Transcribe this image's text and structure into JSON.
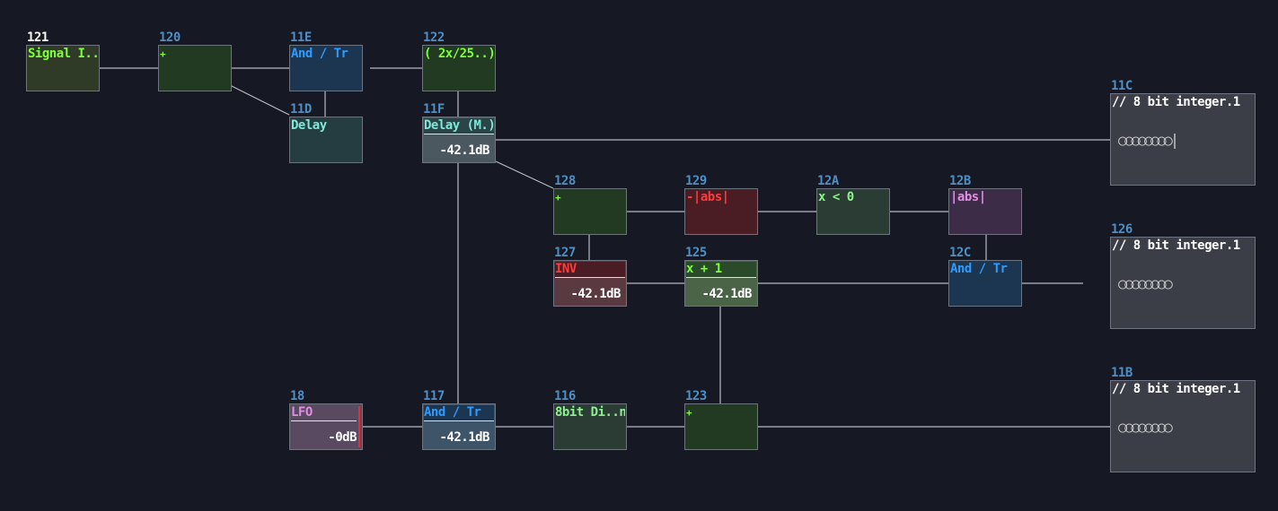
{
  "nodes": {
    "n121": {
      "id": "121",
      "title": "Signal I..t"
    },
    "n120": {
      "id": "120",
      "title": "+"
    },
    "n11E": {
      "id": "11E",
      "title": "And / Tr"
    },
    "n122": {
      "id": "122",
      "title": "( 2x/25..)"
    },
    "n11D": {
      "id": "11D",
      "title": "Delay"
    },
    "n11F": {
      "id": "11F",
      "title": "Delay (M.)",
      "meter": "-42.1dB"
    },
    "n128": {
      "id": "128",
      "title": "+"
    },
    "n129": {
      "id": "129",
      "title": "-|abs|"
    },
    "n12A": {
      "id": "12A",
      "title": "x < 0"
    },
    "n12B": {
      "id": "12B",
      "title": "|abs|"
    },
    "n127": {
      "id": "127",
      "title": "INV",
      "meter": "-42.1dB"
    },
    "n125": {
      "id": "125",
      "title": "x + 1",
      "meter": "-42.1dB"
    },
    "n12C": {
      "id": "12C",
      "title": "And / Tr"
    },
    "n18": {
      "id": "18",
      "title": "LFO",
      "meter": "-0dB"
    },
    "n117": {
      "id": "117",
      "title": "And / Tr",
      "meter": "-42.1dB"
    },
    "n116": {
      "id": "116",
      "title": "8bit Di..n"
    },
    "n123": {
      "id": "123",
      "title": "+"
    },
    "n11C": {
      "id": "11C",
      "title": "// 8 bit integer.1",
      "rings": "○○○○○○○○|"
    },
    "n126": {
      "id": "126",
      "title": "// 8 bit integer.1",
      "rings": "○○○○○○○○"
    },
    "n11B": {
      "id": "11B",
      "title": "// 8 bit integer.1",
      "rings": "○○○○○○○○"
    }
  },
  "colors": {
    "background": "#161823",
    "wire": "#b8bcc4",
    "green_title": "#7dff3a",
    "blue_title": "#2f9bff",
    "cyan_title": "#7fe8d8",
    "red_title": "#ff3b3b",
    "pink_title": "#e08ee0"
  }
}
